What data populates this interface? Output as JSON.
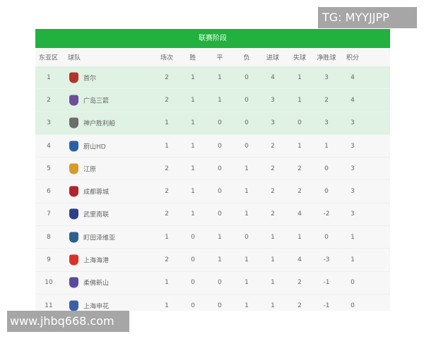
{
  "title": "联赛阶段",
  "columns": [
    "东亚区",
    "球队",
    "场次",
    "胜",
    "平",
    "负",
    "进球",
    "失球",
    "净胜球",
    "积分"
  ],
  "rows": [
    {
      "rank": "1",
      "team": "首尔",
      "p": "2",
      "w": "1",
      "d": "1",
      "l": "0",
      "gf": "4",
      "ga": "1",
      "gd": "3",
      "pts": "4",
      "logo_color": "#b5322c",
      "highlight": true
    },
    {
      "rank": "2",
      "team": "广岛三箭",
      "p": "2",
      "w": "1",
      "d": "1",
      "l": "0",
      "gf": "3",
      "ga": "1",
      "gd": "2",
      "pts": "4",
      "logo_color": "#6a4f9c",
      "highlight": true
    },
    {
      "rank": "3",
      "team": "神户胜利船",
      "p": "1",
      "w": "1",
      "d": "0",
      "l": "0",
      "gf": "3",
      "ga": "0",
      "gd": "3",
      "pts": "3",
      "logo_color": "#6d6d6d",
      "highlight": true
    },
    {
      "rank": "4",
      "team": "蔚山HD",
      "p": "1",
      "w": "1",
      "d": "0",
      "l": "0",
      "gf": "2",
      "ga": "1",
      "gd": "1",
      "pts": "3",
      "logo_color": "#2a5fa8",
      "highlight": false
    },
    {
      "rank": "5",
      "team": "江原",
      "p": "2",
      "w": "1",
      "d": "0",
      "l": "1",
      "gf": "2",
      "ga": "2",
      "gd": "0",
      "pts": "3",
      "logo_color": "#d79a2b",
      "highlight": false
    },
    {
      "rank": "6",
      "team": "成都蓉城",
      "p": "2",
      "w": "1",
      "d": "0",
      "l": "1",
      "gf": "2",
      "ga": "2",
      "gd": "0",
      "pts": "3",
      "logo_color": "#b0232f",
      "highlight": false
    },
    {
      "rank": "7",
      "team": "武里南联",
      "p": "2",
      "w": "1",
      "d": "0",
      "l": "1",
      "gf": "2",
      "ga": "4",
      "gd": "-2",
      "pts": "3",
      "logo_color": "#2b3f8c",
      "highlight": false
    },
    {
      "rank": "8",
      "team": "町田泽维亚",
      "p": "1",
      "w": "0",
      "d": "1",
      "l": "0",
      "gf": "1",
      "ga": "1",
      "gd": "0",
      "pts": "1",
      "logo_color": "#2f5f8f",
      "highlight": false
    },
    {
      "rank": "9",
      "team": "上海海港",
      "p": "2",
      "w": "0",
      "d": "1",
      "l": "1",
      "gf": "1",
      "ga": "4",
      "gd": "-3",
      "pts": "1",
      "logo_color": "#d8322a",
      "highlight": false
    },
    {
      "rank": "10",
      "team": "柔佛新山",
      "p": "1",
      "w": "0",
      "d": "0",
      "l": "1",
      "gf": "1",
      "ga": "2",
      "gd": "-1",
      "pts": "0",
      "logo_color": "#5a4a9c",
      "highlight": false
    },
    {
      "rank": "11",
      "team": "上海申花",
      "p": "1",
      "w": "0",
      "d": "0",
      "l": "1",
      "gf": "1",
      "ga": "2",
      "gd": "-1",
      "pts": "0",
      "logo_color": "#3a5fa8",
      "highlight": false
    }
  ],
  "watermarks": {
    "top": "TG: MYYJJPP",
    "bottom": "www.jhbq668.com"
  }
}
